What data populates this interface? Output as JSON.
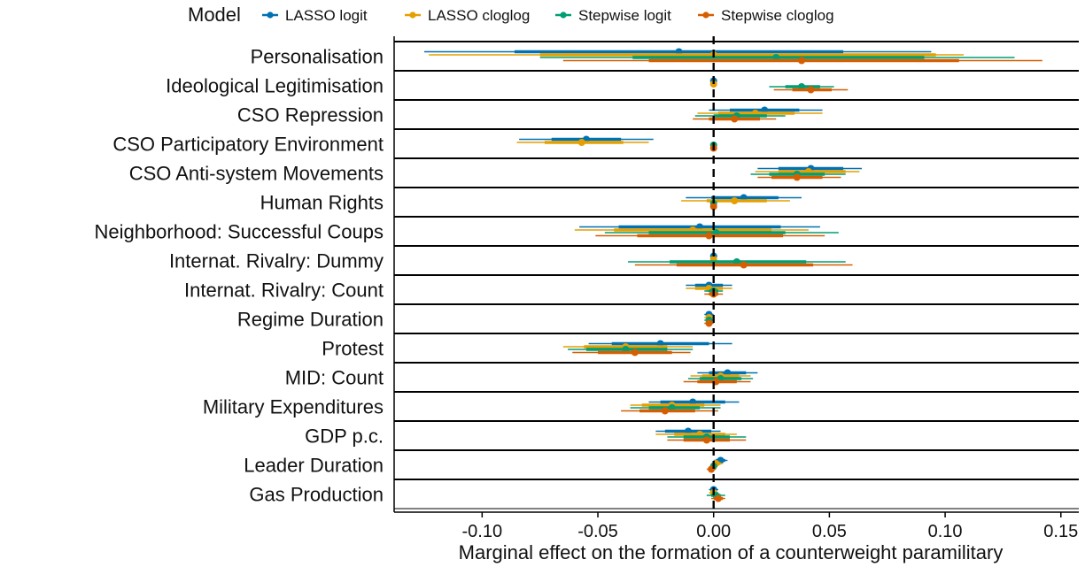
{
  "chart_data": {
    "type": "forest",
    "xlabel": "Marginal effect on the formation of a counterweight paramilitary",
    "xlim": [
      -0.138,
      0.152
    ],
    "xticks": [
      -0.1,
      -0.05,
      0.0,
      0.05,
      0.1,
      0.15
    ],
    "xtick_labels": [
      "-0.10",
      "-0.05",
      "0.00",
      "0.05",
      "0.10",
      "0.15"
    ],
    "reference_line": 0,
    "grid": false,
    "legend": {
      "title": "Model",
      "placement": "top",
      "entries": [
        "LASSO logit",
        "LASSO cloglog",
        "Stepwise logit",
        "Stepwise cloglog"
      ]
    },
    "categories": [
      "Personalisation",
      "Ideological Legitimisation",
      "CSO Repression",
      "CSO Participatory Environment",
      "CSO Anti-system Movements",
      "Human Rights",
      "Neighborhood: Successful Coups",
      "Internat. Rivalry: Dummy",
      "Internat. Rivalry: Count",
      "Regime Duration",
      "Protest",
      "MID: Count",
      "Military Expenditures",
      "GDP p.c.",
      "Leader Duration",
      "Gas Production"
    ],
    "series": [
      {
        "name": "LASSO logit",
        "color": "#0072B2",
        "estimate": [
          -0.015,
          0.0,
          0.022,
          -0.055,
          0.042,
          0.013,
          -0.006,
          0.0,
          -0.002,
          -0.002,
          -0.023,
          0.006,
          -0.009,
          -0.011,
          0.003,
          0.0
        ],
        "ci90": [
          [
            -0.086,
            0.056
          ],
          [
            0.0,
            0.0
          ],
          [
            0.007,
            0.037
          ],
          [
            -0.07,
            -0.04
          ],
          [
            0.028,
            0.056
          ],
          [
            -0.001,
            0.028
          ],
          [
            -0.041,
            0.029
          ],
          [
            0.0,
            0.0
          ],
          [
            -0.008,
            0.004
          ],
          [
            -0.003,
            -0.001
          ],
          [
            -0.044,
            -0.002
          ],
          [
            -0.002,
            0.014
          ],
          [
            -0.023,
            0.005
          ],
          [
            -0.021,
            -0.001
          ],
          [
            0.001,
            0.005
          ],
          [
            -0.001,
            0.001
          ]
        ],
        "ci95": [
          [
            -0.125,
            0.094
          ],
          [
            0.0,
            0.0
          ],
          [
            -0.002,
            0.047
          ],
          [
            -0.084,
            -0.026
          ],
          [
            0.019,
            0.064
          ],
          [
            -0.012,
            0.038
          ],
          [
            -0.058,
            0.046
          ],
          [
            0.0,
            0.0
          ],
          [
            -0.012,
            0.008
          ],
          [
            -0.004,
            0.0
          ],
          [
            -0.054,
            0.008
          ],
          [
            -0.007,
            0.019
          ],
          [
            -0.028,
            0.011
          ],
          [
            -0.025,
            0.003
          ],
          [
            0.0,
            0.006
          ],
          [
            -0.002,
            0.002
          ]
        ]
      },
      {
        "name": "LASSO cloglog",
        "color": "#E69F00",
        "estimate": [
          0.0,
          0.0,
          0.018,
          -0.057,
          0.041,
          0.009,
          -0.009,
          0.0,
          -0.002,
          -0.002,
          -0.038,
          0.003,
          -0.018,
          -0.006,
          0.001,
          0.0
        ],
        "ci90": [
          [
            -0.075,
            0.096
          ],
          [
            0.0,
            0.0
          ],
          [
            0.002,
            0.035
          ],
          [
            -0.073,
            -0.039
          ],
          [
            0.028,
            0.057
          ],
          [
            -0.003,
            0.023
          ],
          [
            -0.043,
            0.025
          ],
          [
            0.0,
            0.0
          ],
          [
            -0.008,
            0.004
          ],
          [
            -0.003,
            -0.001
          ],
          [
            -0.056,
            -0.02
          ],
          [
            -0.005,
            0.011
          ],
          [
            -0.031,
            -0.004
          ],
          [
            -0.017,
            0.005
          ],
          [
            0.0,
            0.003
          ],
          [
            -0.001,
            0.001
          ]
        ],
        "ci95": [
          [
            -0.123,
            0.108
          ],
          [
            0.0,
            0.0
          ],
          [
            -0.007,
            0.047
          ],
          [
            -0.085,
            -0.028
          ],
          [
            0.018,
            0.063
          ],
          [
            -0.014,
            0.033
          ],
          [
            -0.06,
            0.041
          ],
          [
            0.0,
            0.0
          ],
          [
            -0.012,
            0.008
          ],
          [
            -0.004,
            0.0
          ],
          [
            -0.065,
            -0.009
          ],
          [
            -0.01,
            0.016
          ],
          [
            -0.036,
            0.003
          ],
          [
            -0.025,
            0.01
          ],
          [
            -0.001,
            0.004
          ],
          [
            -0.002,
            0.002
          ]
        ]
      },
      {
        "name": "Stepwise logit",
        "color": "#009E73",
        "estimate": [
          0.027,
          0.038,
          0.01,
          0.0,
          0.036,
          0.0,
          0.001,
          0.01,
          0.0,
          -0.002,
          -0.038,
          0.003,
          -0.018,
          -0.003,
          0.0,
          0.001
        ],
        "ci90": [
          [
            -0.035,
            0.091
          ],
          [
            0.031,
            0.046
          ],
          [
            0.0,
            0.023
          ],
          [
            0.0,
            0.0
          ],
          [
            0.024,
            0.048
          ],
          [
            0.0,
            0.0
          ],
          [
            -0.028,
            0.031
          ],
          [
            -0.019,
            0.04
          ],
          [
            -0.002,
            0.002
          ],
          [
            -0.003,
            -0.001
          ],
          [
            -0.055,
            -0.02
          ],
          [
            -0.006,
            0.012
          ],
          [
            -0.028,
            -0.006
          ],
          [
            -0.013,
            0.007
          ],
          [
            0.0,
            0.0
          ],
          [
            -0.001,
            0.003
          ]
        ],
        "ci95": [
          [
            -0.075,
            0.13
          ],
          [
            0.024,
            0.052
          ],
          [
            -0.008,
            0.031
          ],
          [
            0.0,
            0.0
          ],
          [
            0.016,
            0.057
          ],
          [
            0.0,
            0.0
          ],
          [
            -0.047,
            0.054
          ],
          [
            -0.037,
            0.057
          ],
          [
            -0.004,
            0.004
          ],
          [
            -0.004,
            0.0
          ],
          [
            -0.063,
            -0.009
          ],
          [
            -0.011,
            0.017
          ],
          [
            -0.036,
            0.003
          ],
          [
            -0.02,
            0.014
          ],
          [
            -0.001,
            0.001
          ],
          [
            -0.003,
            0.005
          ]
        ]
      },
      {
        "name": "Stepwise cloglog",
        "color": "#D55E00",
        "estimate": [
          0.038,
          0.042,
          0.009,
          0.0,
          0.036,
          0.0,
          -0.002,
          0.013,
          0.0,
          -0.002,
          -0.034,
          0.001,
          -0.021,
          -0.003,
          -0.001,
          0.002
        ],
        "ci90": [
          [
            -0.028,
            0.106
          ],
          [
            0.034,
            0.051
          ],
          [
            -0.002,
            0.02
          ],
          [
            0.0,
            0.0
          ],
          [
            0.025,
            0.047
          ],
          [
            0.0,
            0.0
          ],
          [
            -0.033,
            0.03
          ],
          [
            -0.016,
            0.043
          ],
          [
            -0.002,
            0.002
          ],
          [
            -0.003,
            -0.001
          ],
          [
            -0.05,
            -0.018
          ],
          [
            -0.007,
            0.01
          ],
          [
            -0.032,
            -0.008
          ],
          [
            -0.013,
            0.007
          ],
          [
            -0.002,
            0.0
          ],
          [
            0.0,
            0.004
          ]
        ],
        "ci95": [
          [
            -0.065,
            0.142
          ],
          [
            0.026,
            0.058
          ],
          [
            -0.009,
            0.027
          ],
          [
            0.0,
            0.0
          ],
          [
            0.019,
            0.055
          ],
          [
            0.0,
            0.0
          ],
          [
            -0.051,
            0.048
          ],
          [
            -0.034,
            0.06
          ],
          [
            -0.004,
            0.004
          ],
          [
            -0.004,
            0.0
          ],
          [
            -0.061,
            -0.01
          ],
          [
            -0.013,
            0.016
          ],
          [
            -0.04,
            0.002
          ],
          [
            -0.02,
            0.014
          ],
          [
            -0.003,
            0.001
          ],
          [
            -0.001,
            0.005
          ]
        ]
      }
    ]
  }
}
